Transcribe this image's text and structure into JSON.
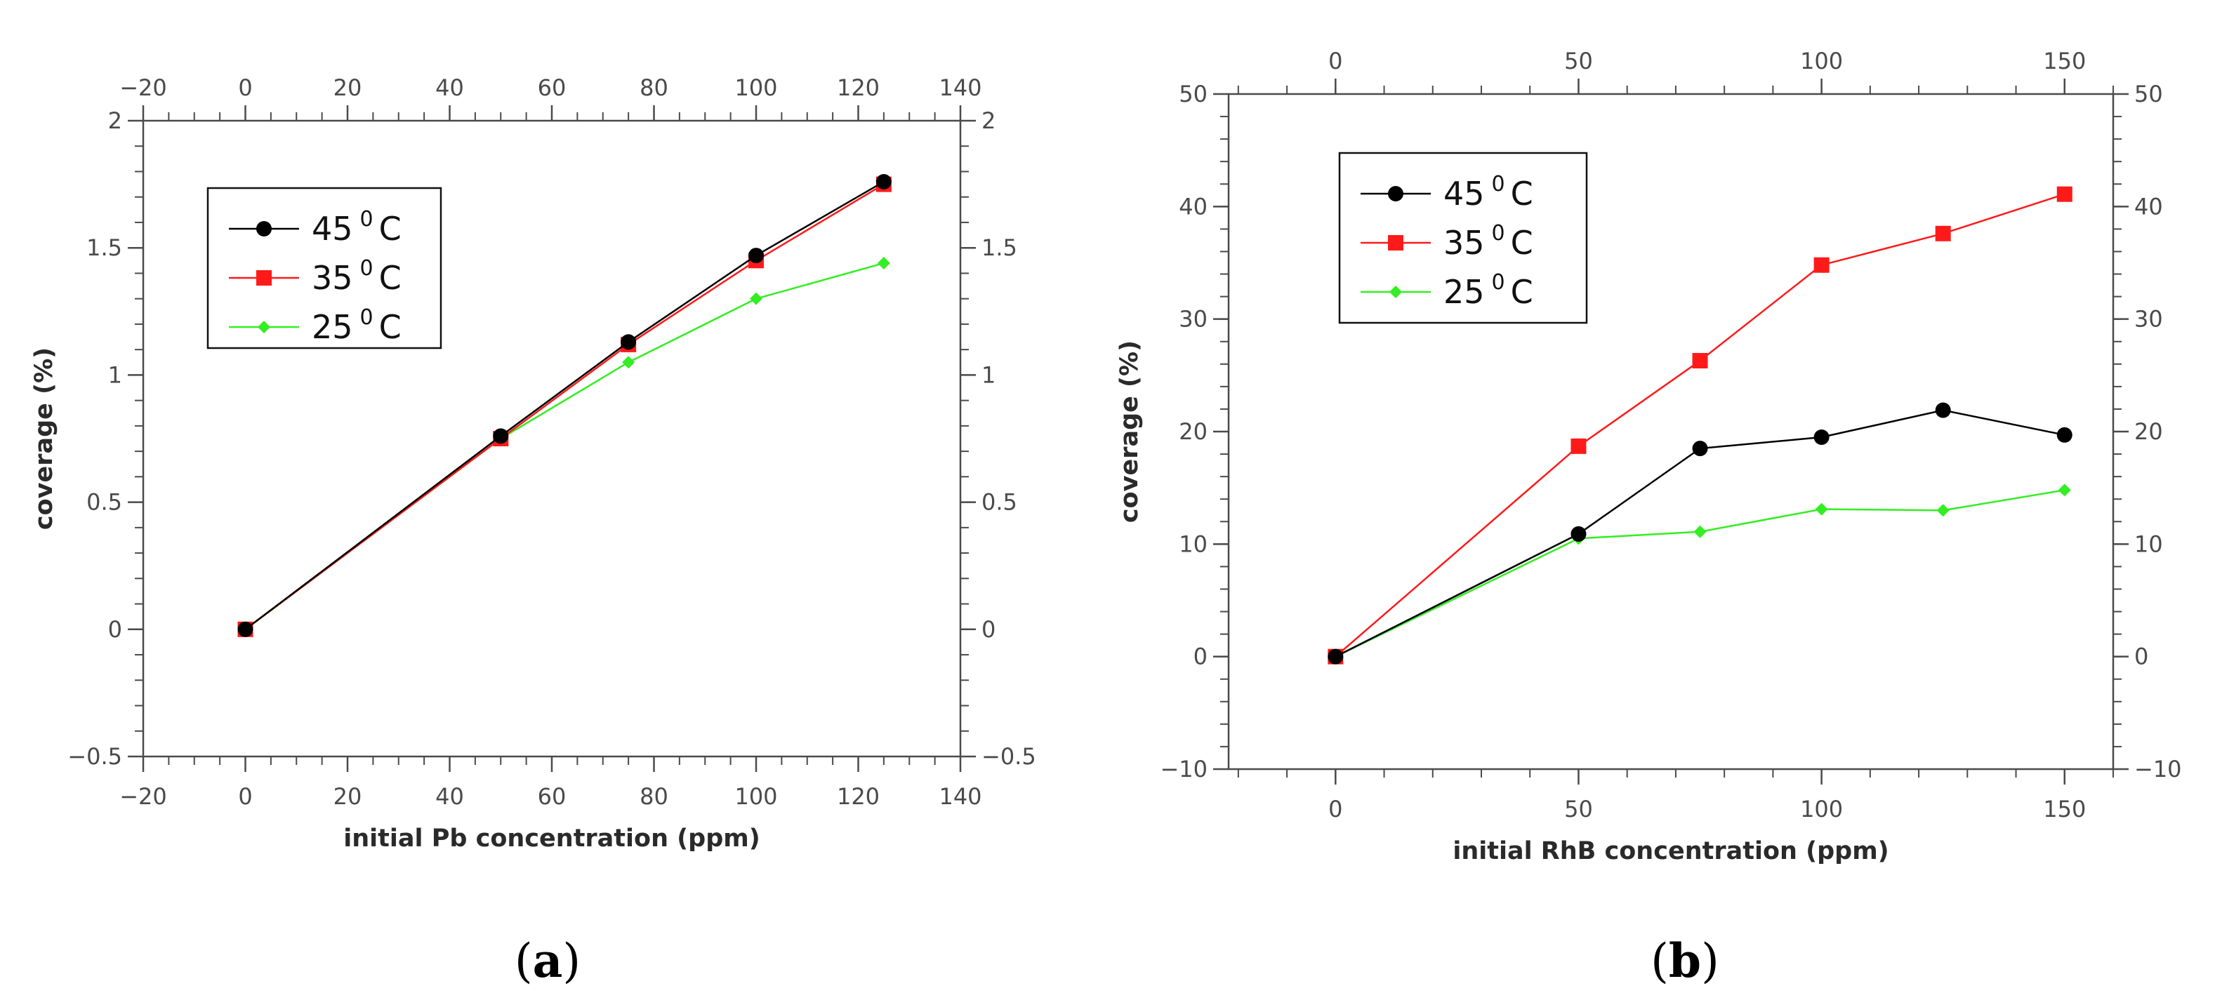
{
  "colors": {
    "t45": "#000000",
    "t35": "#ff1a1a",
    "t25": "#33ee22",
    "axis": "#4a4a4a"
  },
  "chart_data": [
    {
      "type": "line",
      "panel_label": "a",
      "xlabel": "initial Pb concentration (ppm)",
      "ylabel": "coverage (%)",
      "xlim": [
        -20,
        140
      ],
      "ylim": [
        -0.5,
        2
      ],
      "x_ticks": [
        "−20",
        "0",
        "20",
        "40",
        "60",
        "80",
        "100",
        "120",
        "140"
      ],
      "y_ticks": [
        "−0.5",
        "0",
        "0.5",
        "1",
        "1.5",
        "2"
      ],
      "legend_position": "top-left",
      "series": [
        {
          "name": "45",
          "label_suffix": "C",
          "superscript": "0",
          "color": "#000000",
          "marker": "circle",
          "x": [
            0,
            50,
            75,
            100,
            125
          ],
          "y": [
            0,
            0.76,
            1.13,
            1.47,
            1.76
          ]
        },
        {
          "name": "35",
          "label_suffix": "C",
          "superscript": "0",
          "color": "#ff1a1a",
          "marker": "square",
          "x": [
            0,
            50,
            75,
            100,
            125
          ],
          "y": [
            0,
            0.75,
            1.12,
            1.45,
            1.75
          ]
        },
        {
          "name": "25",
          "label_suffix": "C",
          "superscript": "0",
          "color": "#33ee22",
          "marker": "diamond",
          "x": [
            0,
            50,
            75,
            100,
            125
          ],
          "y": [
            0,
            0.75,
            1.05,
            1.3,
            1.44
          ]
        }
      ]
    },
    {
      "type": "line",
      "panel_label": "b",
      "xlabel": "initial RhB concentration (ppm)",
      "ylabel": "coverage (%)",
      "xlim": [
        -22,
        160
      ],
      "ylim": [
        -10,
        50
      ],
      "x_ticks": [
        "0",
        "50",
        "100",
        "150"
      ],
      "y_ticks": [
        "−10",
        "0",
        "10",
        "20",
        "30",
        "40",
        "50"
      ],
      "legend_position": "top-left",
      "series": [
        {
          "name": "45",
          "label_suffix": "C",
          "superscript": "0",
          "color": "#000000",
          "marker": "circle",
          "x": [
            0,
            50,
            75,
            100,
            125,
            150
          ],
          "y": [
            0,
            10.9,
            18.5,
            19.5,
            21.9,
            19.7
          ]
        },
        {
          "name": "35",
          "label_suffix": "C",
          "superscript": "0",
          "color": "#ff1a1a",
          "marker": "square",
          "x": [
            0,
            50,
            75,
            100,
            125,
            150
          ],
          "y": [
            0,
            18.7,
            26.3,
            34.8,
            37.6,
            41.1
          ]
        },
        {
          "name": "25",
          "label_suffix": "C",
          "superscript": "0",
          "color": "#33ee22",
          "marker": "diamond",
          "x": [
            0,
            50,
            75,
            100,
            125,
            150
          ],
          "y": [
            0,
            10.5,
            11.1,
            13.1,
            13.0,
            14.8
          ]
        }
      ]
    }
  ]
}
